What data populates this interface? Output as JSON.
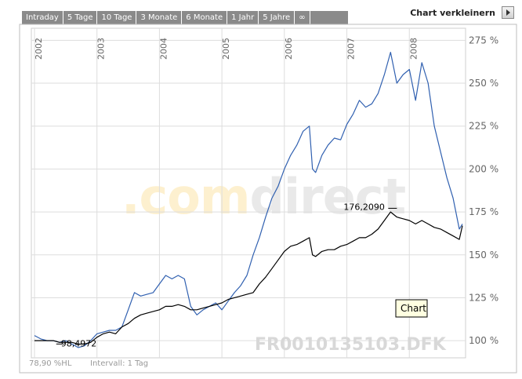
{
  "tabs": [
    "Intraday",
    "5 Tage",
    "10 Tage",
    "3 Monate",
    "6 Monate",
    "1 Jahr",
    "5 Jahre",
    "∞"
  ],
  "shrink_label": "Chart verkleinern",
  "watermark": {
    "left": ".com",
    "right": "direct"
  },
  "instrument": "FR0010135103.DFK",
  "tooltip": "Chart",
  "footer": {
    "low_info": "78,90 %HL",
    "interval": "Intervall: 1 Tag"
  },
  "colors": {
    "benchmark": "#000000",
    "fund": "#3060b0",
    "grid": "#dddddd",
    "tab_bg": "#8a8a8a"
  },
  "chart_data": {
    "type": "line",
    "x_labels": [
      "2002",
      "2003",
      "2004",
      "2005",
      "2006",
      "2007",
      "2008"
    ],
    "y_ticks": [
      "100 %",
      "125 %",
      "150 %",
      "175 %",
      "200 %",
      "225 %",
      "250 %",
      "275 %"
    ],
    "ylim": [
      90,
      282
    ],
    "xlim": [
      2001.95,
      2008.9
    ],
    "grid": true,
    "annotations": [
      {
        "text": "176,2090",
        "x": 2007.7,
        "y": 176.2
      },
      {
        "text": "98,4972",
        "x": 2002.8,
        "y": 98.5
      }
    ],
    "series": [
      {
        "key": "fund",
        "x": [
          2002.0,
          2002.1,
          2002.2,
          2002.3,
          2002.4,
          2002.5,
          2002.6,
          2002.7,
          2002.8,
          2002.9,
          2003.0,
          2003.1,
          2003.2,
          2003.3,
          2003.4,
          2003.5,
          2003.6,
          2003.7,
          2003.8,
          2003.9,
          2004.0,
          2004.1,
          2004.2,
          2004.3,
          2004.4,
          2004.5,
          2004.6,
          2004.7,
          2004.8,
          2004.9,
          2005.0,
          2005.1,
          2005.2,
          2005.3,
          2005.4,
          2005.5,
          2005.6,
          2005.7,
          2005.8,
          2005.9,
          2006.0,
          2006.1,
          2006.2,
          2006.3,
          2006.4,
          2006.45,
          2006.5,
          2006.6,
          2006.7,
          2006.8,
          2006.9,
          2007.0,
          2007.1,
          2007.2,
          2007.3,
          2007.4,
          2007.5,
          2007.6,
          2007.7,
          2007.8,
          2007.9,
          2008.0,
          2008.1,
          2008.2,
          2008.3,
          2008.4,
          2008.5,
          2008.6,
          2008.7,
          2008.8,
          2008.85
        ],
        "y": [
          103,
          101,
          100,
          100,
          99,
          100,
          98,
          96,
          97,
          100,
          104,
          105,
          106,
          106,
          108,
          118,
          128,
          126,
          127,
          128,
          133,
          138,
          136,
          138,
          136,
          120,
          115,
          118,
          120,
          122,
          118,
          123,
          128,
          132,
          138,
          150,
          160,
          172,
          183,
          190,
          200,
          208,
          214,
          222,
          225,
          200,
          198,
          208,
          214,
          218,
          217,
          226,
          232,
          240,
          236,
          238,
          244,
          255,
          268,
          250,
          255,
          258,
          240,
          262,
          250,
          225,
          210,
          195,
          183,
          165,
          168
        ]
      },
      {
        "key": "benchmark",
        "x": [
          2002.0,
          2002.1,
          2002.2,
          2002.3,
          2002.4,
          2002.5,
          2002.6,
          2002.7,
          2002.8,
          2002.9,
          2003.0,
          2003.1,
          2003.2,
          2003.3,
          2003.4,
          2003.5,
          2003.6,
          2003.7,
          2003.8,
          2003.9,
          2004.0,
          2004.1,
          2004.2,
          2004.3,
          2004.4,
          2004.5,
          2004.6,
          2004.7,
          2004.8,
          2004.9,
          2005.0,
          2005.1,
          2005.2,
          2005.3,
          2005.4,
          2005.5,
          2005.6,
          2005.7,
          2005.8,
          2005.9,
          2006.0,
          2006.1,
          2006.2,
          2006.3,
          2006.4,
          2006.45,
          2006.5,
          2006.6,
          2006.7,
          2006.8,
          2006.9,
          2007.0,
          2007.1,
          2007.2,
          2007.3,
          2007.4,
          2007.5,
          2007.6,
          2007.7,
          2007.8,
          2007.9,
          2008.0,
          2008.1,
          2008.2,
          2008.3,
          2008.4,
          2008.5,
          2008.6,
          2008.7,
          2008.8,
          2008.85
        ],
        "y": [
          100,
          100,
          100,
          100,
          99,
          99,
          99,
          98,
          98,
          99,
          102,
          104,
          105,
          104,
          108,
          110,
          113,
          115,
          116,
          117,
          118,
          120,
          120,
          121,
          120,
          118,
          118,
          119,
          120,
          121,
          122,
          124,
          125,
          126,
          127,
          128,
          133,
          137,
          142,
          147,
          152,
          155,
          156,
          158,
          160,
          150,
          149,
          152,
          153,
          153,
          155,
          156,
          158,
          160,
          160,
          162,
          165,
          170,
          175,
          172,
          171,
          170,
          168,
          170,
          168,
          166,
          165,
          163,
          161,
          159,
          167
        ]
      }
    ]
  }
}
